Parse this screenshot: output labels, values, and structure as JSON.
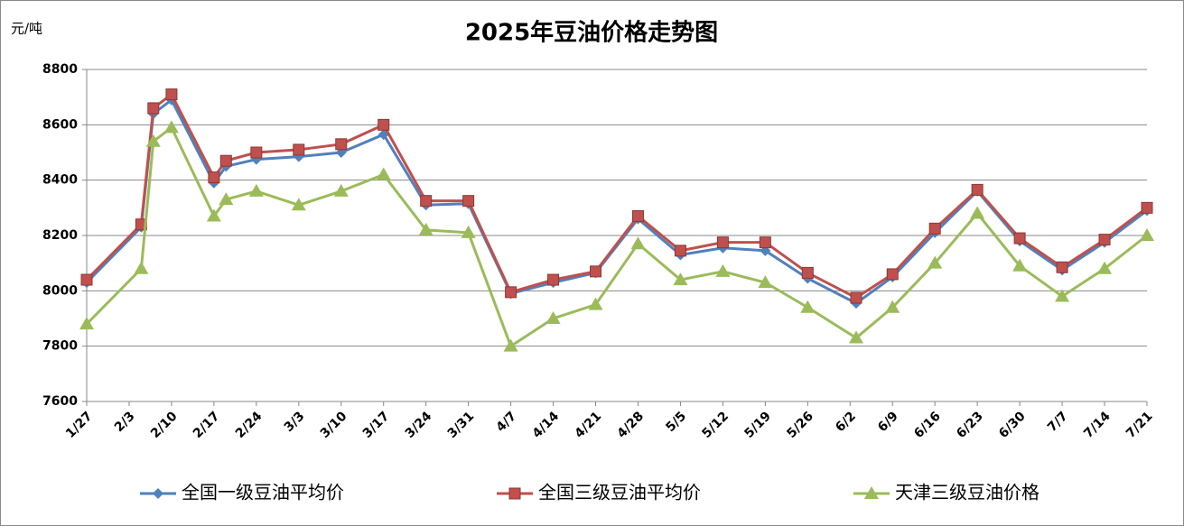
{
  "chart_data": {
    "type": "line",
    "title": "2025年豆油价格走势图",
    "y_axis_label": "元/吨",
    "x": [
      "1/27",
      "2/5",
      "2/7",
      "2/10",
      "2/17",
      "2/19",
      "2/24",
      "3/3",
      "3/10",
      "3/17",
      "3/24",
      "3/31",
      "4/7",
      "4/14",
      "4/21",
      "4/28",
      "5/5",
      "5/12",
      "5/19",
      "5/26",
      "6/3",
      "6/9",
      "6/16",
      "6/23",
      "6/30",
      "7/7",
      "7/14",
      "7/21"
    ],
    "xlim": [
      "1/27",
      "7/21"
    ],
    "xticks": [
      "1/27",
      "2/3",
      "2/10",
      "2/17",
      "2/24",
      "3/3",
      "3/10",
      "3/17",
      "3/24",
      "3/31",
      "4/7",
      "4/14",
      "4/21",
      "4/28",
      "5/5",
      "5/12",
      "5/19",
      "5/26",
      "6/2",
      "6/9",
      "6/16",
      "6/23",
      "6/30",
      "7/7",
      "7/14",
      "7/21"
    ],
    "ylim": [
      7600,
      8800
    ],
    "yticks": [
      7600,
      7800,
      8000,
      8200,
      8400,
      8600,
      8800
    ],
    "grid": true,
    "legend": "bottom",
    "series": [
      {
        "name": "全国一级豆油平均价",
        "color": "#4f81bd",
        "marker": "diamond",
        "values": [
          8030,
          8230,
          8640,
          8690,
          8390,
          8450,
          8475,
          8485,
          8500,
          8565,
          8310,
          8315,
          7990,
          8030,
          8065,
          8260,
          8130,
          8155,
          8145,
          8045,
          7955,
          8050,
          8210,
          8360,
          8180,
          8075,
          8175,
          8290
        ]
      },
      {
        "name": "全国三级豆油平均价",
        "color": "#c0504d",
        "marker": "square",
        "values": [
          8040,
          8240,
          8660,
          8710,
          8410,
          8470,
          8500,
          8510,
          8530,
          8600,
          8325,
          8325,
          7995,
          8040,
          8070,
          8270,
          8145,
          8175,
          8175,
          8065,
          7975,
          8060,
          8225,
          8365,
          8190,
          8085,
          8185,
          8300
        ]
      },
      {
        "name": "天津三级豆油价格",
        "color": "#9bbb59",
        "marker": "triangle",
        "values": [
          7880,
          8080,
          8540,
          8590,
          8270,
          8330,
          8360,
          8310,
          8360,
          8420,
          8220,
          8210,
          7800,
          7900,
          7950,
          8170,
          8040,
          8070,
          8030,
          7940,
          7830,
          7940,
          8100,
          8280,
          8090,
          7980,
          8080,
          8200
        ]
      }
    ]
  }
}
